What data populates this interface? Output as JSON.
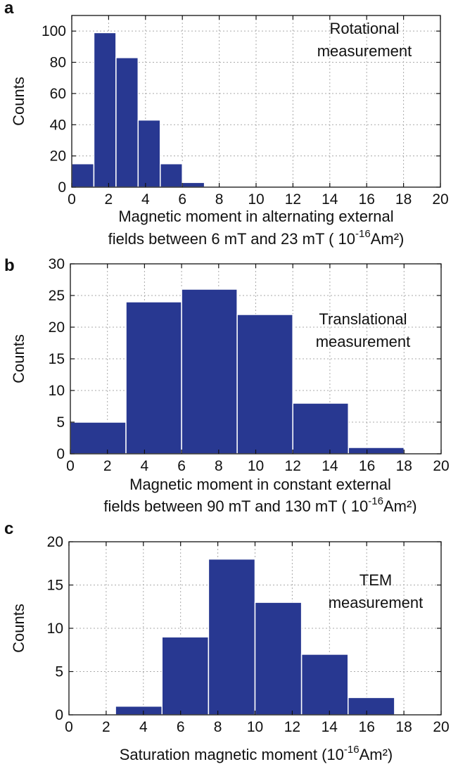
{
  "chart_data": [
    {
      "type": "bar",
      "panel": "a",
      "ylabel": "Counts",
      "xlabel_line1": "Magnetic moment in alternating external",
      "xlabel_line2_prefix": "fields between 6 mT and 23 mT ( 10",
      "xlabel_exp": "-16",
      "xlabel_suffix": "Am²)",
      "annotation": [
        "Rotational",
        "measurement"
      ],
      "xlim": [
        0,
        20
      ],
      "ylim": [
        0,
        110
      ],
      "xticks": [
        0,
        2,
        4,
        6,
        8,
        10,
        12,
        14,
        16,
        18,
        20
      ],
      "yticks": [
        0,
        20,
        40,
        60,
        80,
        100
      ],
      "bins": [
        {
          "from": 0,
          "to": 1.2,
          "count": 15
        },
        {
          "from": 1.2,
          "to": 2.4,
          "count": 99
        },
        {
          "from": 2.4,
          "to": 3.6,
          "count": 83
        },
        {
          "from": 3.6,
          "to": 4.8,
          "count": 43
        },
        {
          "from": 4.8,
          "to": 6.0,
          "count": 15
        },
        {
          "from": 6.0,
          "to": 7.2,
          "count": 3
        }
      ],
      "grid": true
    },
    {
      "type": "bar",
      "panel": "b",
      "ylabel": "Counts",
      "xlabel_line1": "Magnetic moment in constant external",
      "xlabel_line2_prefix": "fields between 90 mT and 130 mT ( 10",
      "xlabel_exp": "-16",
      "xlabel_suffix": "Am²)",
      "annotation": [
        "Translational",
        "measurement"
      ],
      "xlim": [
        0,
        20
      ],
      "ylim": [
        0,
        30
      ],
      "xticks": [
        0,
        2,
        4,
        6,
        8,
        10,
        12,
        14,
        16,
        18,
        20
      ],
      "yticks": [
        0,
        5,
        10,
        15,
        20,
        25,
        30
      ],
      "bins": [
        {
          "from": 0,
          "to": 3,
          "count": 5
        },
        {
          "from": 3,
          "to": 6,
          "count": 24
        },
        {
          "from": 6,
          "to": 9,
          "count": 26
        },
        {
          "from": 9,
          "to": 12,
          "count": 22
        },
        {
          "from": 12,
          "to": 15,
          "count": 8
        },
        {
          "from": 15,
          "to": 18,
          "count": 1
        }
      ],
      "grid": true
    },
    {
      "type": "bar",
      "panel": "c",
      "ylabel": "Counts",
      "xlabel_line1": "",
      "xlabel_line2_prefix": "Saturation magnetic moment  (10",
      "xlabel_exp": "-16",
      "xlabel_suffix": "Am²)",
      "annotation": [
        "TEM",
        "measurement"
      ],
      "xlim": [
        0,
        20
      ],
      "ylim": [
        0,
        20
      ],
      "xticks": [
        0,
        2,
        4,
        6,
        8,
        10,
        12,
        14,
        16,
        18,
        20
      ],
      "yticks": [
        0,
        5,
        10,
        15,
        20
      ],
      "bins": [
        {
          "from": 2.5,
          "to": 5,
          "count": 1
        },
        {
          "from": 5,
          "to": 7.5,
          "count": 9
        },
        {
          "from": 7.5,
          "to": 10,
          "count": 18
        },
        {
          "from": 10,
          "to": 12.5,
          "count": 13
        },
        {
          "from": 12.5,
          "to": 15,
          "count": 7
        },
        {
          "from": 15,
          "to": 17.5,
          "count": 2
        }
      ],
      "grid": true
    }
  ],
  "bar_color": "#283891",
  "labels": {
    "a": "a",
    "b": "b",
    "c": "c"
  }
}
